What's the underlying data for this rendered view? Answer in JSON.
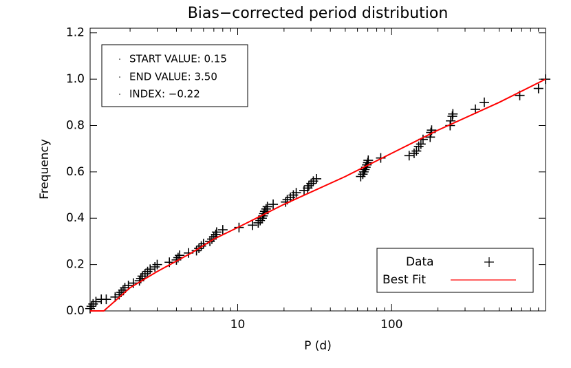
{
  "chart_data": {
    "type": "scatter",
    "title": "Bias−corrected period distribution",
    "x_label": "P (d)",
    "y_label": "Frequency",
    "x_log": true,
    "xlim": [
      1.1,
      1000
    ],
    "xticks": [
      10,
      100
    ],
    "xminorticks": [
      2,
      3,
      4,
      5,
      6,
      7,
      8,
      9,
      20,
      30,
      40,
      50,
      60,
      70,
      80,
      90,
      200,
      300,
      400,
      500,
      600,
      700,
      800,
      900
    ],
    "ylim": [
      0,
      1.22
    ],
    "yticks": [
      {
        "value": 0,
        "label": "0.0"
      },
      0.2,
      0.4,
      0.6,
      0.8,
      {
        "value": 1,
        "label": "1.0"
      },
      1.2
    ],
    "annotations": [
      "START VALUE: 0.15",
      "END VALUE: 3.50",
      "INDEX: −0.22"
    ],
    "legend": "lower right",
    "series": [
      {
        "name": "Data",
        "type": "scatter",
        "color": "#000000",
        "x": [
          1.1,
          1.12,
          1.15,
          1.2,
          1.3,
          1.4,
          1.6,
          1.7,
          1.75,
          1.8,
          1.85,
          1.95,
          2.1,
          2.3,
          2.35,
          2.4,
          2.5,
          2.6,
          2.7,
          2.9,
          3.0,
          3.6,
          4.0,
          4.1,
          4.2,
          4.8,
          5.4,
          5.6,
          5.8,
          6.0,
          6.6,
          6.8,
          7.0,
          7.2,
          7.3,
          8.0,
          10.2,
          12.5,
          13.6,
          14.0,
          14.4,
          14.6,
          14.8,
          15.0,
          15.3,
          15.6,
          17,
          20.5,
          21,
          22,
          23,
          24,
          27,
          28.5,
          29,
          30,
          31,
          32.5,
          63,
          65,
          66,
          67,
          68,
          69,
          70,
          70.5,
          85,
          130,
          140,
          145,
          150,
          155,
          160,
          178,
          180,
          182,
          240,
          242,
          248,
          250,
          350,
          400,
          680,
          900,
          1000
        ],
        "values": [
          0.01,
          0.02,
          0.03,
          0.04,
          0.05,
          0.05,
          0.06,
          0.07,
          0.08,
          0.09,
          0.1,
          0.11,
          0.12,
          0.13,
          0.14,
          0.15,
          0.16,
          0.17,
          0.18,
          0.19,
          0.2,
          0.21,
          0.22,
          0.23,
          0.24,
          0.25,
          0.26,
          0.27,
          0.28,
          0.29,
          0.3,
          0.31,
          0.32,
          0.33,
          0.34,
          0.35,
          0.36,
          0.37,
          0.38,
          0.39,
          0.4,
          0.41,
          0.42,
          0.43,
          0.44,
          0.45,
          0.46,
          0.47,
          0.48,
          0.49,
          0.5,
          0.51,
          0.52,
          0.53,
          0.54,
          0.55,
          0.56,
          0.57,
          0.58,
          0.59,
          0.6,
          0.61,
          0.62,
          0.63,
          0.64,
          0.65,
          0.66,
          0.67,
          0.68,
          0.69,
          0.71,
          0.72,
          0.74,
          0.75,
          0.77,
          0.78,
          0.8,
          0.82,
          0.84,
          0.85,
          0.87,
          0.9,
          0.93,
          0.96,
          1.0
        ]
      },
      {
        "name": "Best Fit",
        "type": "line",
        "color": "#ff0000",
        "x": [
          1.1,
          1.35,
          2,
          3,
          5,
          7,
          10,
          20,
          50,
          100,
          200,
          500,
          1000
        ],
        "values": [
          0,
          0,
          0.1,
          0.17,
          0.25,
          0.31,
          0.36,
          0.46,
          0.58,
          0.68,
          0.78,
          0.9,
          1.0
        ]
      }
    ]
  }
}
